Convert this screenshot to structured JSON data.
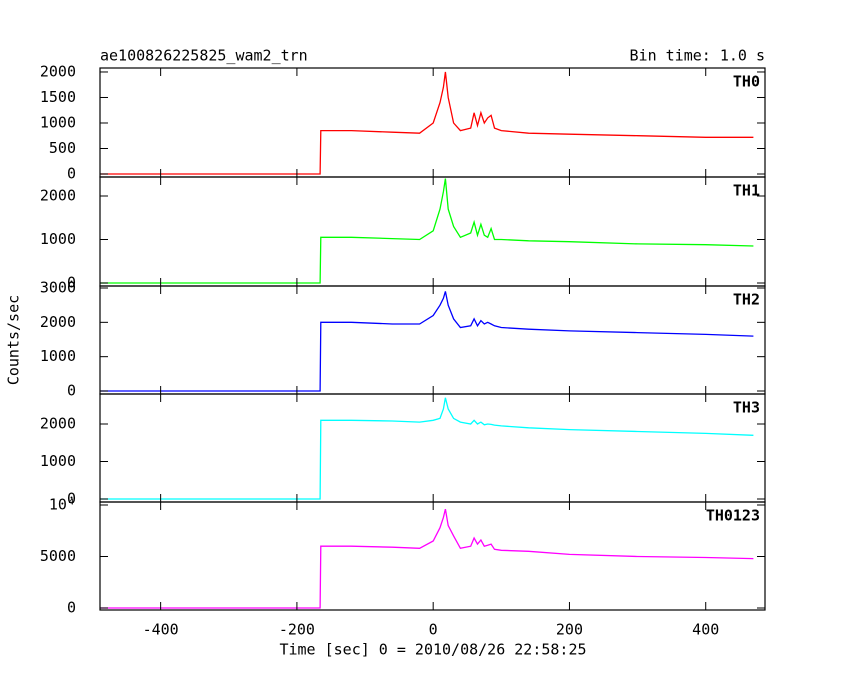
{
  "title": "ae100826225825_wam2_trn",
  "annotation": "Bin time: 1.0 s",
  "y_label": "Counts/sec",
  "x_label": "Time [sec] 0 = 2010/08/26 22:58:25",
  "chart_data": [
    {
      "type": "line",
      "name": "TH0",
      "color": "#ff0000",
      "x": [
        -488,
        -300,
        -166,
        -165,
        -120,
        -60,
        -20,
        0,
        10,
        15,
        18,
        22,
        30,
        40,
        55,
        60,
        65,
        70,
        75,
        80,
        85,
        90,
        100,
        140,
        200,
        300,
        400,
        470
      ],
      "values": [
        0,
        0,
        0,
        850,
        850,
        820,
        800,
        1000,
        1400,
        1700,
        2000,
        1500,
        1000,
        850,
        900,
        1200,
        950,
        1200,
        1000,
        1100,
        1150,
        900,
        850,
        800,
        780,
        750,
        720,
        720
      ],
      "xlim": [
        -489,
        487
      ],
      "xticks": [
        -400,
        -200,
        0,
        200,
        400
      ],
      "ylim": [
        -59,
        2078
      ],
      "yticks": [
        0,
        500,
        1000,
        1500,
        2000
      ]
    },
    {
      "type": "line",
      "name": "TH1",
      "color": "#00ff00",
      "x": [
        -488,
        -300,
        -166,
        -165,
        -120,
        -60,
        -20,
        0,
        10,
        15,
        18,
        22,
        30,
        40,
        55,
        60,
        65,
        70,
        75,
        80,
        85,
        90,
        100,
        140,
        200,
        300,
        400,
        470
      ],
      "values": [
        0,
        0,
        0,
        1050,
        1050,
        1020,
        1000,
        1200,
        1700,
        2100,
        2400,
        1700,
        1300,
        1050,
        1150,
        1400,
        1100,
        1350,
        1100,
        1050,
        1250,
        1000,
        1000,
        970,
        950,
        900,
        880,
        850
      ],
      "xlim": [
        -489,
        487
      ],
      "xticks": [
        -400,
        -200,
        0,
        200,
        400
      ],
      "ylim": [
        -69,
        2437
      ],
      "yticks": [
        0,
        1000,
        2000
      ]
    },
    {
      "type": "line",
      "name": "TH2",
      "color": "#0000ff",
      "x": [
        -488,
        -300,
        -166,
        -165,
        -120,
        -60,
        -20,
        0,
        10,
        15,
        18,
        22,
        30,
        40,
        55,
        60,
        65,
        70,
        75,
        80,
        85,
        90,
        100,
        140,
        200,
        300,
        400,
        470
      ],
      "values": [
        0,
        0,
        0,
        2000,
        2000,
        1950,
        1950,
        2200,
        2500,
        2700,
        2900,
        2500,
        2100,
        1850,
        1900,
        2100,
        1900,
        2050,
        1950,
        2000,
        1950,
        1900,
        1850,
        1800,
        1750,
        1700,
        1650,
        1600
      ],
      "xlim": [
        -489,
        487
      ],
      "xticks": [
        -400,
        -200,
        0,
        200,
        400
      ],
      "ylim": [
        -87,
        3058
      ],
      "yticks": [
        0,
        1000,
        2000,
        3000
      ]
    },
    {
      "type": "line",
      "name": "TH3",
      "color": "#00ffff",
      "x": [
        -488,
        -300,
        -166,
        -165,
        -120,
        -60,
        -20,
        0,
        10,
        15,
        18,
        22,
        30,
        40,
        55,
        60,
        65,
        70,
        75,
        80,
        85,
        90,
        100,
        140,
        200,
        300,
        400,
        470
      ],
      "values": [
        0,
        0,
        0,
        2100,
        2100,
        2080,
        2050,
        2100,
        2150,
        2400,
        2700,
        2400,
        2150,
        2050,
        2000,
        2100,
        2000,
        2050,
        1980,
        2000,
        1990,
        1970,
        1950,
        1900,
        1850,
        1800,
        1750,
        1700
      ],
      "xlim": [
        -489,
        487
      ],
      "xticks": [
        -400,
        -200,
        0,
        200,
        400
      ],
      "ylim": [
        -80,
        2800
      ],
      "yticks": [
        0,
        1000,
        2000
      ]
    },
    {
      "type": "line",
      "name": "TH0123",
      "color": "#ff00ff",
      "x": [
        -488,
        -300,
        -166,
        -165,
        -120,
        -60,
        -20,
        0,
        10,
        15,
        18,
        22,
        30,
        40,
        55,
        60,
        65,
        70,
        75,
        80,
        85,
        90,
        100,
        140,
        200,
        300,
        400,
        470
      ],
      "values": [
        0,
        0,
        0,
        6000,
        6000,
        5900,
        5800,
        6500,
        7800,
        8800,
        9600,
        8000,
        7000,
        5800,
        6000,
        6800,
        6200,
        6600,
        6000,
        6100,
        6200,
        5700,
        5600,
        5500,
        5200,
        5000,
        4900,
        4800
      ],
      "xlim": [
        -489,
        487
      ],
      "xticks": [
        -400,
        -200,
        0,
        200,
        400
      ],
      "ylim": [
        -194,
        10291
      ],
      "yticks": [
        0,
        5000,
        {
          "value": 10000,
          "label": "10⁴"
        }
      ]
    }
  ]
}
